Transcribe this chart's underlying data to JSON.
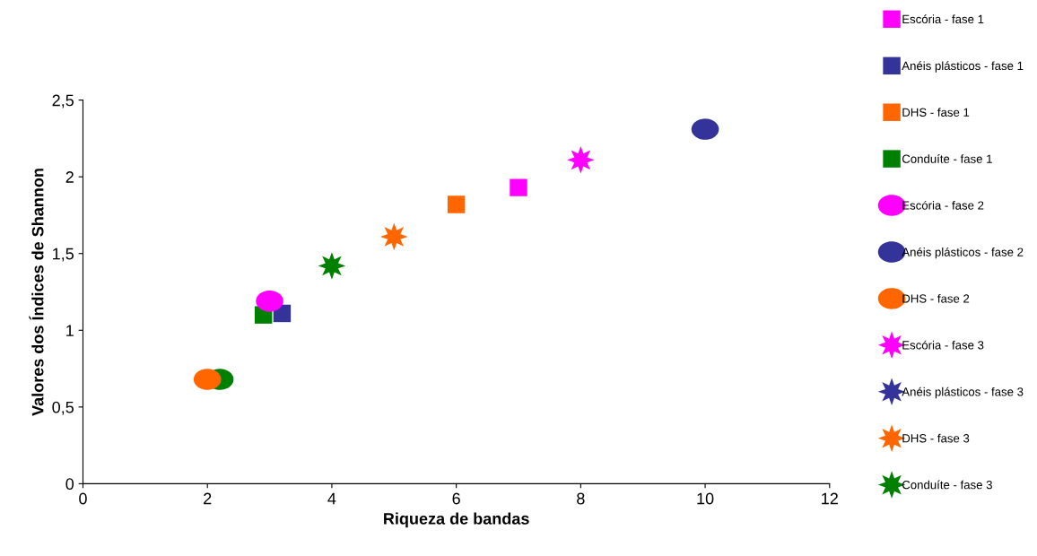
{
  "chart_data": {
    "type": "scatter",
    "xlabel": "Riqueza de bandas",
    "ylabel": "Valores dos Índices de Shannon",
    "xlim": [
      0,
      12
    ],
    "xticks": [
      0,
      2,
      4,
      6,
      8,
      10,
      12
    ],
    "ylim": [
      0,
      2.5
    ],
    "yticks": [
      0,
      {
        "value": 0.5,
        "label": "0,5"
      },
      1,
      {
        "value": 1.5,
        "label": "1,5"
      },
      2,
      {
        "value": 2.5,
        "label": "2,5"
      }
    ],
    "grid": false,
    "legend": "right",
    "series": [
      {
        "name": "Escória - fase 1",
        "color": "#ff00ff",
        "marker": "square",
        "x": [
          7
        ],
        "values": [
          1.93
        ]
      },
      {
        "name": "Anéis plásticos - fase 1",
        "color": "#333399",
        "marker": "square",
        "x": [
          3.2
        ],
        "values": [
          1.11
        ]
      },
      {
        "name": "DHS - fase 1",
        "color": "#ff6600",
        "marker": "square",
        "x": [
          6
        ],
        "values": [
          1.82
        ]
      },
      {
        "name": "Conduíte - fase 1",
        "color": "#008000",
        "marker": "square",
        "x": [
          2.9
        ],
        "values": [
          1.1
        ]
      },
      {
        "color": "#008000",
        "marker": "circle",
        "x": [
          2.2
        ],
        "values": [
          0.68
        ]
      },
      {
        "name": "Escória - fase 2",
        "color": "#ff00ff",
        "marker": "circle",
        "x": [
          3
        ],
        "values": [
          1.19
        ]
      },
      {
        "name": "Anéis plásticos - fase 2",
        "color": "#333399",
        "marker": "circle",
        "x": [
          10
        ],
        "values": [
          2.31
        ]
      },
      {
        "name": "DHS - fase 2",
        "color": "#ff6600",
        "marker": "circle",
        "x": [
          2
        ],
        "values": [
          0.68
        ]
      },
      {
        "name": "Escória - fase 3",
        "color": "#ff00ff",
        "marker": "star",
        "x": [
          8
        ],
        "values": [
          2.11
        ]
      },
      {
        "name": "Anéis plásticos - fase 3",
        "color": "#333399",
        "marker": "star",
        "x": [
          null
        ],
        "values": [
          null
        ]
      },
      {
        "name": "DHS - fase 3",
        "color": "#ff6600",
        "marker": "star",
        "x": [
          5
        ],
        "values": [
          1.61
        ]
      },
      {
        "name": "Conduíte - fase 3",
        "color": "#008000",
        "marker": "star",
        "x": [
          4
        ],
        "values": [
          1.42
        ]
      }
    ]
  }
}
